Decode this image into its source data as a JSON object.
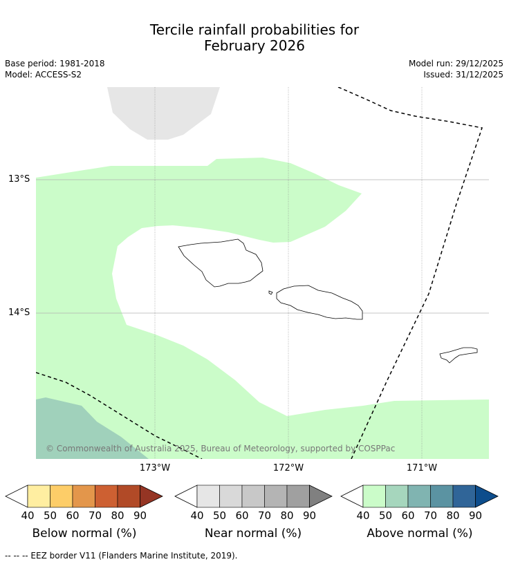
{
  "title_line1": "Tercile rainfall probabilities for",
  "title_line2": "February 2026",
  "base_period": "Base period: 1981-2018",
  "model": "Model: ACCESS-S2",
  "model_run": "Model run: 29/12/2025",
  "issued": "Issued: 31/12/2025",
  "lat_ticks": [
    "13°S",
    "14°S"
  ],
  "lon_ticks": [
    "173°W",
    "172°W",
    "171°W"
  ],
  "copyright": "© Commonwealth of Australia 2025, Bureau of Meteorology, supported by COSPPac",
  "colorbars": [
    {
      "title": "Below normal (%)",
      "ticks": [
        "40",
        "50",
        "60",
        "70",
        "80",
        "90"
      ],
      "colors": [
        "#ffeea1",
        "#fdcd68",
        "#e3964b",
        "#cd6032",
        "#b14a27",
        "#953524"
      ]
    },
    {
      "title": "Near normal (%)",
      "ticks": [
        "40",
        "50",
        "60",
        "70",
        "80",
        "90"
      ],
      "colors": [
        "#e6e6e6",
        "#d9d9d9",
        "#c8c8c8",
        "#b4b4b4",
        "#a0a0a0",
        "#808080"
      ]
    },
    {
      "title": "Above normal (%)",
      "ticks": [
        "40",
        "50",
        "60",
        "70",
        "80",
        "90"
      ],
      "colors": [
        "#cbfcc9",
        "#a6d6bd",
        "#80b4b1",
        "#5b93a2",
        "#306598",
        "#0d4d8c"
      ]
    }
  ],
  "footer": "--  --  -- EEZ border V11 (Flanders Marine Institute, 2019)."
}
